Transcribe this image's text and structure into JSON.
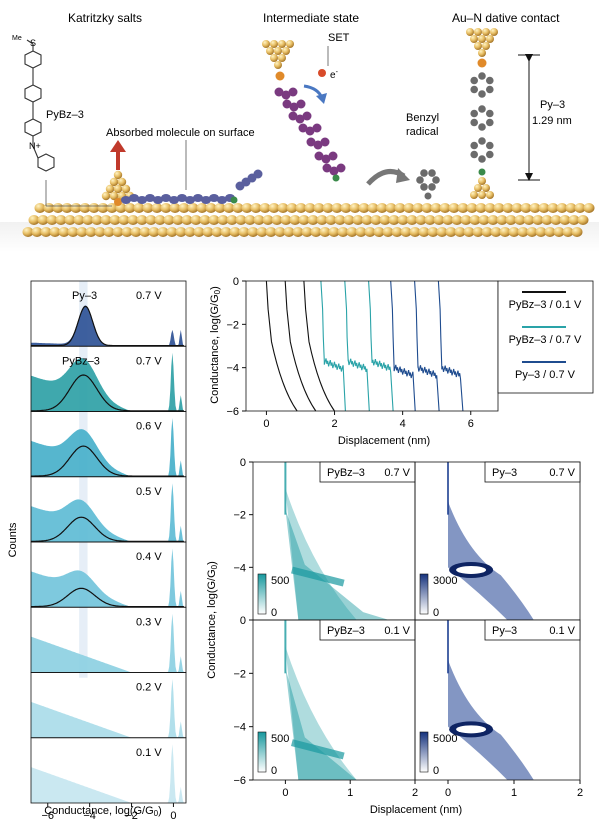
{
  "panel_a": {
    "labels": {
      "salts": "Katritzky salts",
      "intermediate": "Intermediate state",
      "contact": "Au–N dative contact",
      "set": "SET",
      "electron": "e",
      "electron_sup": "-",
      "pybz3": "PyBz–3",
      "nplus": "N+",
      "me": "Me",
      "s": "S",
      "absorbed": "Absorbed molecule on surface",
      "benzyl_1": "Benzyl",
      "benzyl_2": "radical",
      "py3": "Py–3",
      "length": "1.29 nm"
    }
  },
  "common": {
    "conductance_label": "Conductance, log(G/G",
    "g0_sub": "0",
    "closing": ")",
    "displacement_label": "Displacement (nm)",
    "counts_label": "Counts"
  },
  "chart_data": [
    {
      "type": "area",
      "id": "histograms",
      "xlabel": "Conductance, log(G/G0)",
      "ylabel": "Counts",
      "xlim": [
        -6.8,
        0.6
      ],
      "x_ticks": [
        "−6",
        "−4",
        "−2",
        "0"
      ],
      "x_tick_values": [
        -6,
        -4,
        -2,
        0
      ],
      "highlight_band": [
        -4.5,
        -4.1
      ],
      "panels": [
        {
          "bias": "0.7 V",
          "molecule": "Py–3",
          "peak": -4.2,
          "color": "#2a4f94"
        },
        {
          "bias": "0.7 V",
          "molecule": "PyBz–3",
          "peak": -4.3,
          "color": "#2a9ea4"
        },
        {
          "bias": "0.6 V",
          "molecule": "",
          "peak": -4.3,
          "color": "#44aec9"
        },
        {
          "bias": "0.5 V",
          "molecule": "",
          "peak": -4.4,
          "color": "#5bbad4"
        },
        {
          "bias": "0.4 V",
          "molecule": "",
          "peak": -4.4,
          "color": "#70c3da"
        },
        {
          "bias": "0.3 V",
          "molecule": "",
          "peak": null,
          "color": "#8bcfe1"
        },
        {
          "bias": "0.2 V",
          "molecule": "",
          "peak": null,
          "color": "#a8dbe9"
        },
        {
          "bias": "0.1 V",
          "molecule": "",
          "peak": null,
          "color": "#c4e6f0"
        }
      ]
    },
    {
      "type": "line",
      "id": "traces",
      "xlabel": "Displacement (nm)",
      "ylabel": "Conductance, log(G/G0)",
      "xlim": [
        -0.6,
        6.8
      ],
      "ylim": [
        -6,
        0
      ],
      "x_ticks": [
        "0",
        "2",
        "4",
        "6"
      ],
      "x_tick_values": [
        0,
        2,
        4,
        6
      ],
      "y_ticks": [
        "0",
        "−2",
        "−4",
        "−6"
      ],
      "y_tick_values": [
        0,
        -2,
        -4,
        -6
      ],
      "legend": "top-right",
      "series": [
        {
          "name": "PyBz–3 / 0.1 V",
          "color": "#111111",
          "starts": [
            0.0,
            0.55,
            1.1
          ],
          "plateau": null
        },
        {
          "name": "PyBz–3 / 0.7 V",
          "color": "#2aa3a8",
          "starts": [
            1.6,
            2.3,
            3.0
          ],
          "plateau": -3.7
        },
        {
          "name": "Py–3 / 0.7 V",
          "color": "#1f4c8f",
          "starts": [
            3.65,
            4.35,
            5.05
          ],
          "plateau": -4.0
        }
      ]
    },
    {
      "type": "heatmap",
      "id": "2d-histograms",
      "xlabel": "Displacement (nm)",
      "ylabel": "Conductance, log(G/G0)",
      "xlim": [
        -0.5,
        2
      ],
      "ylim": [
        -6,
        0
      ],
      "x_ticks": [
        "0",
        "1",
        "2"
      ],
      "x_tick_values": [
        0,
        1,
        2
      ],
      "y_ticks": [
        "0",
        "−2",
        "−4",
        "−6"
      ],
      "y_tick_values": [
        0,
        -2,
        -4,
        -6
      ],
      "maps": [
        {
          "molecule": "PyBz–3",
          "bias": "0.7 V",
          "colormap": "teal",
          "scale_max": "500",
          "scale_min": "0"
        },
        {
          "molecule": "Py–3",
          "bias": "0.7 V",
          "colormap": "blue",
          "scale_max": "3000",
          "scale_min": "0"
        },
        {
          "molecule": "PyBz–3",
          "bias": "0.1 V",
          "colormap": "teal",
          "scale_max": "500",
          "scale_min": "0"
        },
        {
          "molecule": "Py–3",
          "bias": "0.1 V",
          "colormap": "blue",
          "scale_max": "5000",
          "scale_min": "0"
        }
      ]
    }
  ]
}
